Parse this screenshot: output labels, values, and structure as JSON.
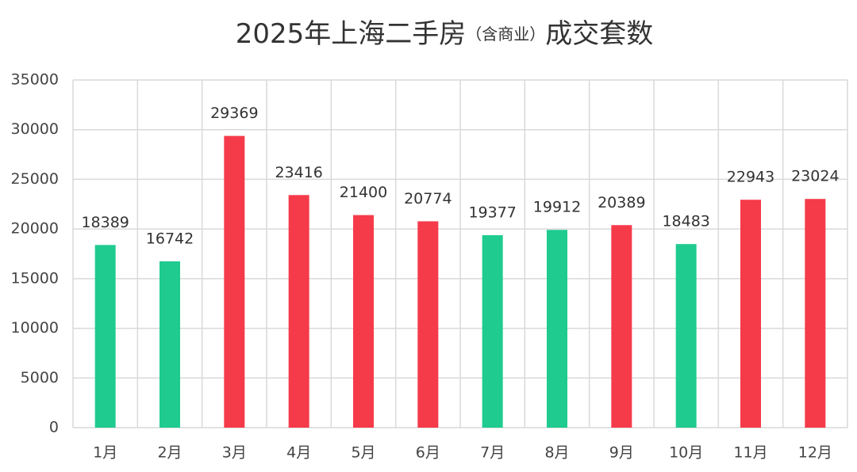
{
  "chart_data": {
    "type": "bar",
    "title": "2025年上海二手房",
    "title_note": "（含商业）",
    "title_suffix": "成交套数",
    "categories": [
      "1月",
      "2月",
      "3月",
      "4月",
      "5月",
      "6月",
      "7月",
      "8月",
      "9月",
      "10月",
      "11月",
      "12月"
    ],
    "values": [
      18389,
      16742,
      29369,
      23416,
      21400,
      20774,
      19377,
      19912,
      20389,
      18483,
      22943,
      23024
    ],
    "colors": [
      "#1fcb8f",
      "#1fcb8f",
      "#f53a4a",
      "#f53a4a",
      "#f53a4a",
      "#f53a4a",
      "#1fcb8f",
      "#1fcb8f",
      "#f53a4a",
      "#1fcb8f",
      "#f53a4a",
      "#f53a4a"
    ],
    "ylim": [
      0,
      35000
    ],
    "yticks": [
      0,
      5000,
      10000,
      15000,
      20000,
      25000,
      30000,
      35000
    ],
    "grid": true
  }
}
